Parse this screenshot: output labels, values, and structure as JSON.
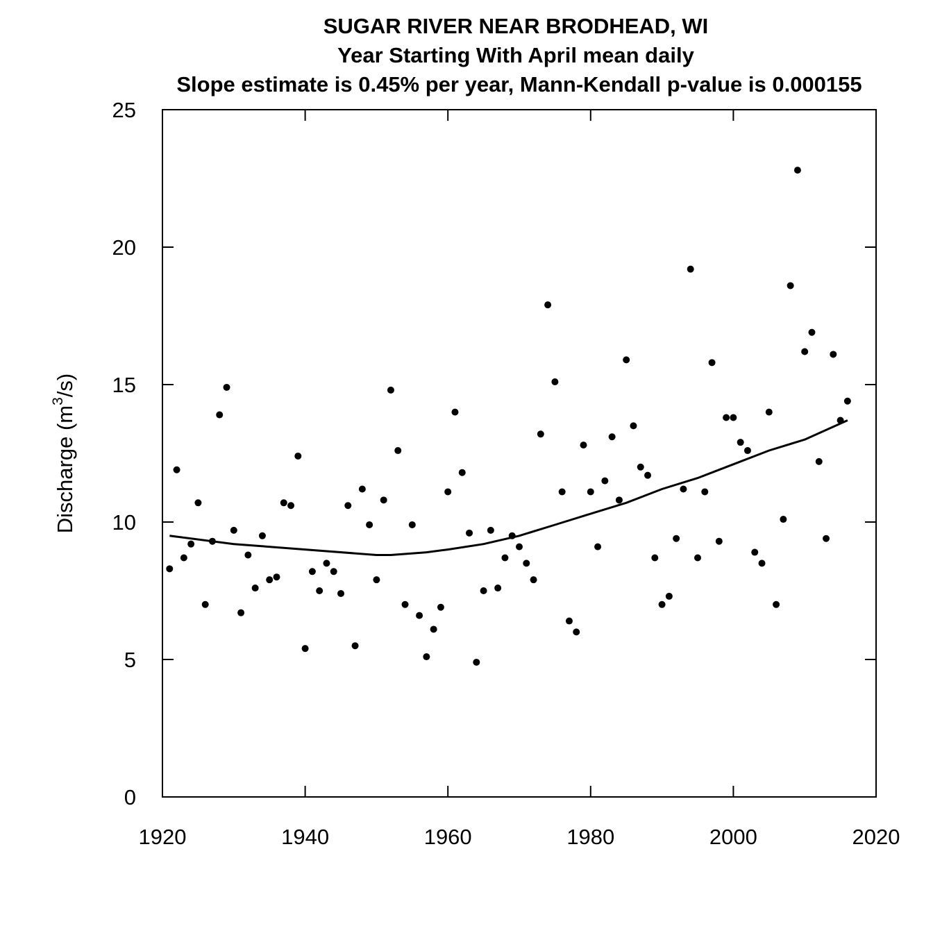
{
  "chart_data": {
    "type": "scatter",
    "title": "SUGAR RIVER NEAR BRODHEAD, WI",
    "subtitle": "Year Starting With April  mean daily",
    "subtitle2": "Slope estimate is 0.45% per year, Mann-Kendall p-value is 0.000155",
    "xlabel": "",
    "ylabel_main": "Discharge (m",
    "ylabel_sup": "3",
    "ylabel_end": "/s)",
    "xlim": [
      1920,
      2020
    ],
    "ylim": [
      0,
      25
    ],
    "xticks": [
      1920,
      1940,
      1960,
      1980,
      2000,
      2020
    ],
    "yticks": [
      0,
      5,
      10,
      15,
      20,
      25
    ],
    "grid": false,
    "points": {
      "x": [
        1921,
        1922,
        1923,
        1924,
        1925,
        1926,
        1927,
        1928,
        1929,
        1930,
        1931,
        1932,
        1933,
        1934,
        1935,
        1936,
        1937,
        1938,
        1939,
        1940,
        1941,
        1942,
        1943,
        1944,
        1945,
        1946,
        1947,
        1948,
        1949,
        1950,
        1951,
        1952,
        1953,
        1954,
        1955,
        1956,
        1957,
        1958,
        1959,
        1960,
        1961,
        1962,
        1963,
        1964,
        1965,
        1966,
        1967,
        1968,
        1969,
        1970,
        1971,
        1972,
        1973,
        1974,
        1975,
        1976,
        1977,
        1978,
        1979,
        1980,
        1981,
        1982,
        1983,
        1984,
        1985,
        1986,
        1987,
        1988,
        1989,
        1990,
        1991,
        1992,
        1993,
        1994,
        1995,
        1996,
        1997,
        1998,
        1999,
        2000,
        2001,
        2002,
        2003,
        2004,
        2005,
        2006,
        2007,
        2008,
        2009,
        2010,
        2011,
        2012,
        2013,
        2014,
        2015,
        2016
      ],
      "y": [
        8.3,
        11.9,
        8.7,
        9.2,
        10.7,
        7.0,
        9.3,
        13.9,
        14.9,
        9.7,
        6.7,
        8.8,
        7.6,
        9.5,
        7.9,
        8.0,
        10.7,
        10.6,
        12.4,
        5.4,
        8.2,
        7.5,
        8.5,
        8.2,
        7.4,
        10.6,
        5.5,
        11.2,
        9.9,
        7.9,
        10.8,
        14.8,
        12.6,
        7.0,
        9.9,
        6.6,
        5.1,
        6.1,
        6.9,
        11.1,
        14.0,
        11.8,
        9.6,
        4.9,
        7.5,
        9.7,
        7.6,
        8.7,
        9.5,
        9.1,
        8.5,
        7.9,
        13.2,
        17.9,
        15.1,
        11.1,
        6.4,
        6.0,
        12.8,
        11.1,
        9.1,
        11.5,
        13.1,
        10.8,
        15.9,
        13.5,
        12.0,
        11.7,
        8.7,
        7.0,
        7.3,
        9.4,
        11.2,
        19.2,
        8.7,
        11.1,
        15.8,
        9.3,
        13.8,
        13.8,
        12.9,
        12.6,
        8.9,
        8.5,
        14.0,
        7.0,
        10.1,
        18.6,
        22.8,
        16.2,
        16.9,
        12.2,
        9.4,
        16.1,
        13.7,
        14.4
      ]
    },
    "trend": {
      "x": [
        1921,
        1930,
        1940,
        1950,
        1952,
        1957,
        1960,
        1965,
        1970,
        1975,
        1980,
        1985,
        1990,
        1995,
        2000,
        2005,
        2010,
        2016
      ],
      "y": [
        9.5,
        9.2,
        9.0,
        8.8,
        8.8,
        8.9,
        9.0,
        9.2,
        9.5,
        9.9,
        10.3,
        10.7,
        11.2,
        11.6,
        12.1,
        12.6,
        13.0,
        13.7
      ]
    }
  }
}
